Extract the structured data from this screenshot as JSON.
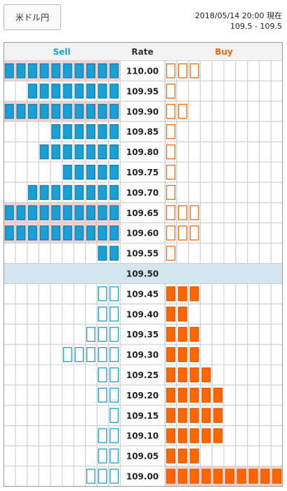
{
  "pair": "米ドル円",
  "timestamp": "2018/05/14 20:00 現在",
  "rate_range": "109.5 - 109.5",
  "headers": {
    "sell": "Sell",
    "rate": "Rate",
    "buy": "Buy"
  },
  "colors": {
    "sell": "#1ba0d6",
    "buy": "#ff6600",
    "highlight": "#f6d2d2",
    "current_row": "#d4e7ee",
    "grid": "#cfcfcf"
  },
  "max_cells": 10,
  "rows": [
    {
      "rate": "110.00",
      "sell": 10,
      "sell_fill": "filled",
      "buy": 3,
      "buy_fill": "outline",
      "highlight": "sell"
    },
    {
      "rate": "109.95",
      "sell": 8,
      "sell_fill": "filled",
      "buy": 1,
      "buy_fill": "outline",
      "highlight": ""
    },
    {
      "rate": "109.90",
      "sell": 10,
      "sell_fill": "filled",
      "buy": 2,
      "buy_fill": "outline",
      "highlight": "sell"
    },
    {
      "rate": "109.85",
      "sell": 6,
      "sell_fill": "filled",
      "buy": 1,
      "buy_fill": "outline",
      "highlight": ""
    },
    {
      "rate": "109.80",
      "sell": 7,
      "sell_fill": "filled",
      "buy": 1,
      "buy_fill": "outline",
      "highlight": ""
    },
    {
      "rate": "109.75",
      "sell": 5,
      "sell_fill": "filled",
      "buy": 1,
      "buy_fill": "outline",
      "highlight": ""
    },
    {
      "rate": "109.70",
      "sell": 8,
      "sell_fill": "filled",
      "buy": 1,
      "buy_fill": "outline",
      "highlight": ""
    },
    {
      "rate": "109.65",
      "sell": 10,
      "sell_fill": "filled",
      "buy": 3,
      "buy_fill": "outline",
      "highlight": "sell"
    },
    {
      "rate": "109.60",
      "sell": 10,
      "sell_fill": "filled",
      "buy": 3,
      "buy_fill": "outline",
      "highlight": "sell"
    },
    {
      "rate": "109.55",
      "sell": 2,
      "sell_fill": "filled",
      "buy": 1,
      "buy_fill": "outline",
      "highlight": ""
    },
    {
      "rate": "109.50",
      "sell": 0,
      "sell_fill": "filled",
      "buy": 0,
      "buy_fill": "filled",
      "highlight": "",
      "current": true
    },
    {
      "rate": "109.45",
      "sell": 2,
      "sell_fill": "outline",
      "buy": 3,
      "buy_fill": "filled",
      "highlight": ""
    },
    {
      "rate": "109.40",
      "sell": 2,
      "sell_fill": "outline",
      "buy": 2,
      "buy_fill": "filled",
      "highlight": ""
    },
    {
      "rate": "109.35",
      "sell": 3,
      "sell_fill": "outline",
      "buy": 3,
      "buy_fill": "filled",
      "highlight": ""
    },
    {
      "rate": "109.30",
      "sell": 5,
      "sell_fill": "outline",
      "buy": 3,
      "buy_fill": "filled",
      "highlight": ""
    },
    {
      "rate": "109.25",
      "sell": 2,
      "sell_fill": "outline",
      "buy": 4,
      "buy_fill": "filled",
      "highlight": ""
    },
    {
      "rate": "109.20",
      "sell": 2,
      "sell_fill": "outline",
      "buy": 5,
      "buy_fill": "filled",
      "highlight": ""
    },
    {
      "rate": "109.15",
      "sell": 1,
      "sell_fill": "outline",
      "buy": 5,
      "buy_fill": "filled",
      "highlight": ""
    },
    {
      "rate": "109.10",
      "sell": 2,
      "sell_fill": "outline",
      "buy": 5,
      "buy_fill": "filled",
      "highlight": ""
    },
    {
      "rate": "109.05",
      "sell": 2,
      "sell_fill": "outline",
      "buy": 3,
      "buy_fill": "filled",
      "highlight": ""
    },
    {
      "rate": "109.00",
      "sell": 3,
      "sell_fill": "outline",
      "buy": 10,
      "buy_fill": "filled",
      "highlight": "buy"
    }
  ]
}
